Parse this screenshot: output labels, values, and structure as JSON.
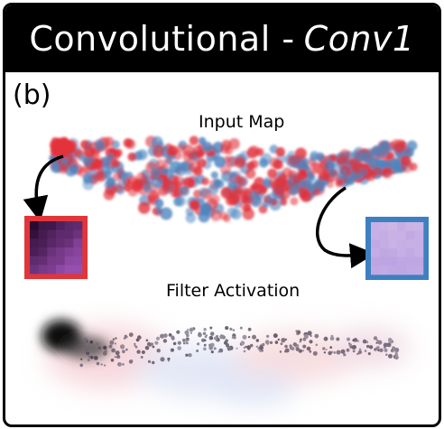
{
  "title": {
    "main": "Convolutional - ",
    "model": "Conv1"
  },
  "panel_label": "(b)",
  "captions": {
    "input_map": "Input Map",
    "filter_activation": "Filter Activation"
  },
  "colors": {
    "red_point": "#e3323b",
    "blue_point": "#4c86c0",
    "dark_patch_border": "#e0363a",
    "light_patch_border": "#3d80c0",
    "dark_patch_fill": "#3a0a32",
    "light_patch_fill": "#c3a9e0"
  }
}
